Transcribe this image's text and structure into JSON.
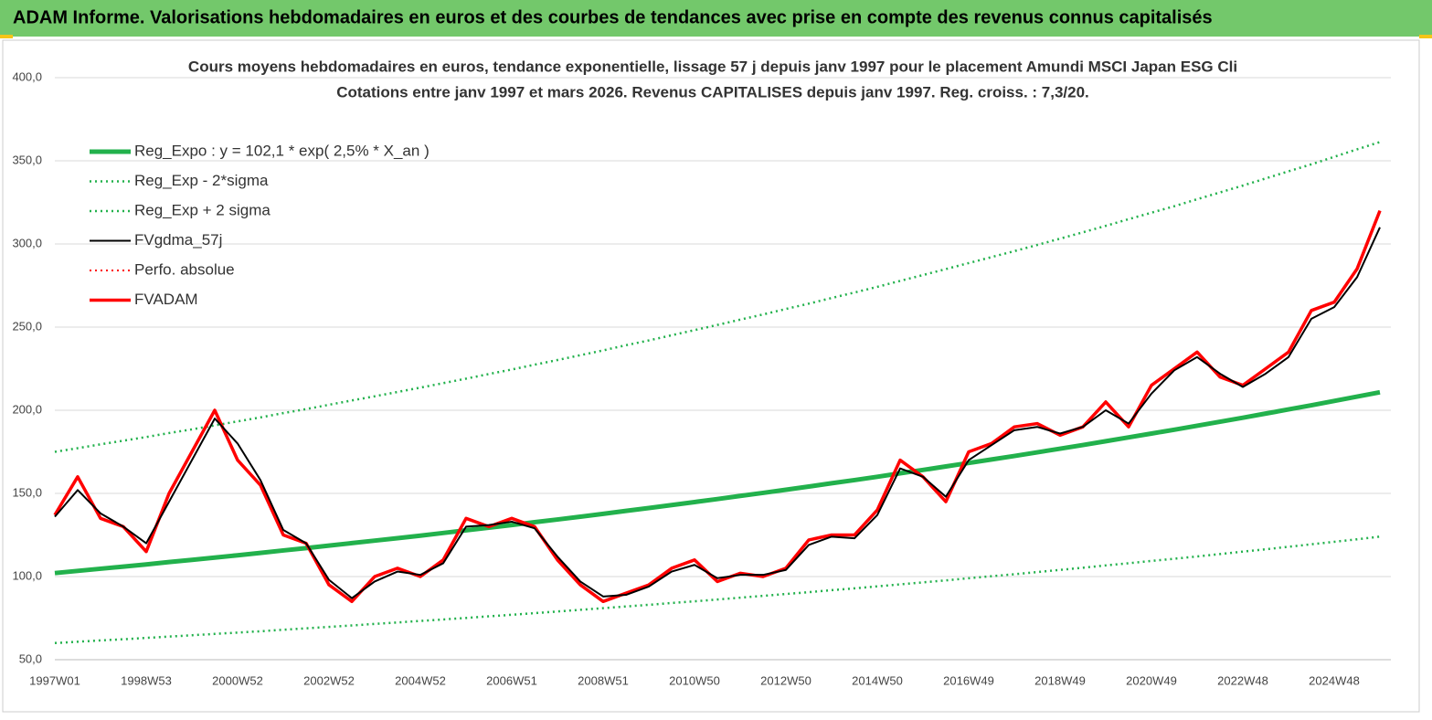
{
  "chart_data": {
    "type": "line",
    "header": "ADAM Informe. Valorisations hebdomadaires en euros et des courbes de tendances avec prise en compte des revenus connus capitalisés",
    "title": "Cours moyens hebdomadaires en euros, tendance exponentielle, lissage 57 j depuis janv 1997  pour le placement Amundi MSCI Japan ESG Cli",
    "subtitle": "Cotations entre janv 1997 et mars 2026. Revenus  CAPITALISES  depuis janv 1997. Reg. croiss. : 7,3/20.",
    "categories": [
      "1997W01",
      null,
      null,
      null,
      "1998W53",
      null,
      null,
      null,
      "2000W52",
      null,
      null,
      null,
      "2002W52",
      null,
      null,
      null,
      "2004W52",
      null,
      null,
      null,
      "2006W51",
      null,
      null,
      null,
      "2008W51",
      null,
      null,
      null,
      "2010W50",
      null,
      null,
      null,
      "2012W50",
      null,
      null,
      null,
      "2014W50",
      null,
      null,
      null,
      "2016W49",
      null,
      null,
      null,
      "2018W49",
      null,
      null,
      null,
      "2020W49",
      null,
      null,
      null,
      "2022W48",
      null,
      null,
      null,
      "2024W48",
      null,
      null
    ],
    "ylim": [
      50,
      400
    ],
    "yticks": [
      {
        "value": 50,
        "label": "50,0"
      },
      {
        "value": 100,
        "label": "100,0"
      },
      {
        "value": 150,
        "label": "150,0"
      },
      {
        "value": 200,
        "label": "200,0"
      },
      {
        "value": 250,
        "label": "250,0"
      },
      {
        "value": 300,
        "label": "300,0"
      },
      {
        "value": 350,
        "label": "350,0"
      },
      {
        "value": 400,
        "label": "400,0"
      }
    ],
    "grid": true,
    "series": [
      {
        "name": "Reg_Expo : y = 102,1 * exp( 2,5% *  X_an )",
        "color": "#22b14c",
        "style": "solid",
        "width": 5,
        "values": [
          102.1,
          103.4,
          104.7,
          106.0,
          107.3,
          108.7,
          110.0,
          111.4,
          112.8,
          114.2,
          115.7,
          117.1,
          118.6,
          120.1,
          121.6,
          123.1,
          124.6,
          126.2,
          127.8,
          129.4,
          131.0,
          132.7,
          134.3,
          136.0,
          137.7,
          139.5,
          141.2,
          143.0,
          144.8,
          146.6,
          148.5,
          150.3,
          152.2,
          154.1,
          156.1,
          158.0,
          160.0,
          162.1,
          164.1,
          166.2,
          168.3,
          170.4,
          172.5,
          174.7,
          176.9,
          179.1,
          181.4,
          183.7,
          186.0,
          188.3,
          190.7,
          193.1,
          195.5,
          198.0,
          200.5,
          203.0,
          205.6,
          208.2,
          210.8
        ]
      },
      {
        "name": "Reg_Exp - 2*sigma",
        "color": "#22b14c",
        "style": "dotted",
        "width": 2.5,
        "values": [
          60.0,
          60.8,
          61.6,
          62.3,
          63.1,
          63.9,
          64.7,
          65.5,
          66.3,
          67.1,
          68.0,
          68.9,
          69.7,
          70.6,
          71.5,
          72.4,
          73.3,
          74.2,
          75.1,
          76.1,
          77.0,
          78.0,
          79.0,
          80.0,
          81.0,
          82.0,
          83.0,
          84.1,
          85.1,
          86.2,
          87.3,
          88.4,
          89.5,
          90.6,
          91.8,
          92.9,
          94.1,
          95.3,
          96.5,
          97.7,
          99.0,
          100.2,
          101.4,
          102.7,
          104.0,
          105.3,
          106.7,
          108.0,
          109.4,
          110.7,
          112.1,
          113.5,
          115.0,
          116.4,
          117.9,
          119.4,
          120.9,
          122.4,
          124.0
        ]
      },
      {
        "name": "Reg_Exp + 2 sigma",
        "color": "#22b14c",
        "style": "dotted",
        "width": 2.5,
        "values": [
          175.0,
          177.2,
          179.5,
          181.7,
          183.9,
          186.3,
          188.5,
          190.9,
          193.3,
          195.7,
          198.3,
          200.7,
          203.3,
          205.9,
          208.4,
          211.0,
          213.6,
          216.3,
          219.0,
          221.8,
          224.5,
          227.4,
          230.2,
          233.1,
          236.0,
          239.1,
          242.0,
          245.1,
          248.2,
          251.3,
          254.5,
          257.6,
          260.9,
          264.1,
          267.5,
          270.8,
          274.2,
          277.8,
          281.3,
          284.9,
          288.5,
          292.1,
          295.7,
          299.4,
          303.2,
          307.0,
          310.9,
          314.9,
          318.8,
          322.7,
          326.9,
          331.0,
          335.1,
          339.4,
          343.7,
          347.9,
          352.4,
          356.9,
          361.3
        ]
      },
      {
        "name": "FVgdma_57j",
        "color": "#000000",
        "style": "solid",
        "width": 2,
        "values": [
          136,
          152,
          138,
          130,
          120,
          145,
          170,
          195,
          180,
          158,
          128,
          120,
          98,
          87,
          97,
          103,
          101,
          108,
          130,
          131,
          133,
          129,
          112,
          97,
          88,
          89,
          94,
          103,
          107,
          99,
          101,
          101,
          104,
          119,
          124,
          123,
          137,
          165,
          160,
          148,
          170,
          179,
          188,
          190,
          186,
          190,
          200,
          192,
          210,
          224,
          232,
          222,
          214,
          222,
          232,
          255,
          262,
          280,
          310
        ]
      },
      {
        "name": "Perfo. absolue",
        "color": "#ff0000",
        "style": "dotted",
        "width": 2,
        "values": [
          137,
          160,
          135,
          130,
          115,
          150,
          175,
          200,
          170,
          155,
          125,
          120,
          95,
          85,
          100,
          105,
          100,
          110,
          135,
          130,
          135,
          130,
          110,
          95,
          85,
          90,
          95,
          105,
          110,
          97,
          102,
          100,
          105,
          122,
          125,
          125,
          140,
          170,
          160,
          145,
          175,
          180,
          190,
          192,
          185,
          190,
          205,
          190,
          215,
          225,
          235,
          220,
          215,
          225,
          235,
          260,
          265,
          285,
          320
        ]
      },
      {
        "name": "FVADAM",
        "color": "#ff0000",
        "style": "solid",
        "width": 3.5,
        "values": [
          137,
          160,
          135,
          130,
          115,
          150,
          175,
          200,
          170,
          155,
          125,
          120,
          95,
          85,
          100,
          105,
          100,
          110,
          135,
          130,
          135,
          130,
          110,
          95,
          85,
          90,
          95,
          105,
          110,
          97,
          102,
          100,
          105,
          122,
          125,
          125,
          140,
          170,
          160,
          145,
          175,
          180,
          190,
          192,
          185,
          190,
          205,
          190,
          215,
          225,
          235,
          220,
          215,
          225,
          235,
          260,
          265,
          285,
          320
        ]
      }
    ]
  }
}
